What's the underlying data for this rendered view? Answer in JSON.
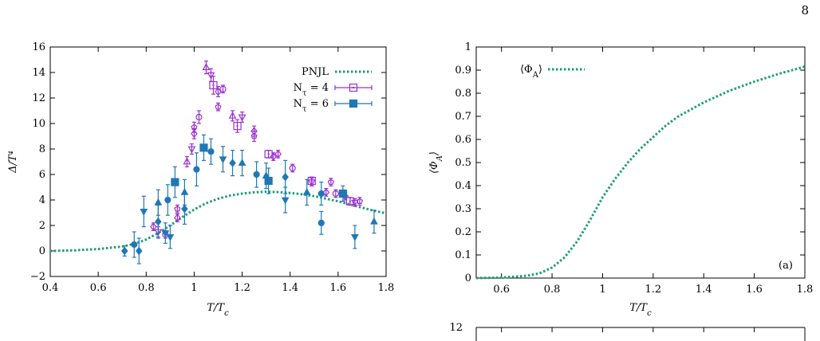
{
  "page_number": "8",
  "colors": {
    "pnjl": "#1a9e77",
    "nt4": "#9b30d0",
    "nt6": "#1f78b4",
    "frame": "#000000"
  },
  "chart_data": [
    {
      "type": "scatter",
      "xlabel": "T/T_c",
      "ylabel": "Δ/T⁴",
      "xlim": [
        0.4,
        1.8
      ],
      "ylim": [
        -2,
        16
      ],
      "xticks": [
        0.4,
        0.6,
        0.8,
        1,
        1.2,
        1.4,
        1.6,
        1.8
      ],
      "yticks": [
        -2,
        0,
        2,
        4,
        6,
        8,
        10,
        12,
        14,
        16
      ],
      "xtick_labels": [
        "0.4",
        "0.6",
        "0.8",
        "1",
        "1.2",
        "1.4",
        "1.6",
        "1.8"
      ],
      "ytick_labels": [
        "−2",
        "0",
        "2",
        "4",
        "6",
        "8",
        "10",
        "12",
        "14",
        "16"
      ],
      "legend_position": "top-right",
      "legend": [
        "PNJL",
        "N_τ = 4",
        "N_τ = 6"
      ],
      "series": [
        {
          "name": "PNJL",
          "style": "dotted-line",
          "x": [
            0.4,
            0.5,
            0.6,
            0.7,
            0.75,
            0.8,
            0.85,
            0.9,
            0.95,
            1.0,
            1.05,
            1.1,
            1.15,
            1.2,
            1.25,
            1.3,
            1.35,
            1.4,
            1.45,
            1.5,
            1.55,
            1.6,
            1.65,
            1.7,
            1.75,
            1.8
          ],
          "y": [
            0.0,
            0.05,
            0.15,
            0.35,
            0.55,
            0.9,
            1.4,
            2.0,
            2.65,
            3.25,
            3.75,
            4.1,
            4.35,
            4.5,
            4.6,
            4.65,
            4.62,
            4.55,
            4.45,
            4.3,
            4.1,
            3.9,
            3.65,
            3.4,
            3.15,
            2.95
          ]
        },
        {
          "name": "N_τ = 4",
          "style": "open-symbols",
          "points": [
            {
              "x": 0.83,
              "y": 1.9,
              "err": 0.3,
              "sym": "diamond"
            },
            {
              "x": 0.85,
              "y": 1.5,
              "err": 0.4,
              "sym": "triangle-down"
            },
            {
              "x": 0.88,
              "y": 1.3,
              "err": 0.3,
              "sym": "circle"
            },
            {
              "x": 0.93,
              "y": 3.3,
              "err": 0.3,
              "sym": "pentagon"
            },
            {
              "x": 0.93,
              "y": 2.6,
              "err": 0.3,
              "sym": "diamond"
            },
            {
              "x": 0.97,
              "y": 7.0,
              "err": 0.4,
              "sym": "triangle-up"
            },
            {
              "x": 0.99,
              "y": 8.0,
              "err": 0.4,
              "sym": "triangle-down"
            },
            {
              "x": 1.0,
              "y": 9.7,
              "err": 0.4,
              "sym": "pentagon"
            },
            {
              "x": 1.0,
              "y": 9.2,
              "err": 0.4,
              "sym": "diamond"
            },
            {
              "x": 1.02,
              "y": 10.5,
              "err": 0.5,
              "sym": "circle"
            },
            {
              "x": 1.05,
              "y": 14.4,
              "err": 0.5,
              "sym": "triangle-up"
            },
            {
              "x": 1.07,
              "y": 13.8,
              "err": 0.5,
              "sym": "triangle-down"
            },
            {
              "x": 1.08,
              "y": 13.0,
              "err": 0.7,
              "sym": "square"
            },
            {
              "x": 1.1,
              "y": 12.5,
              "err": 0.4,
              "sym": "diamond"
            },
            {
              "x": 1.1,
              "y": 11.3,
              "err": 0.3,
              "sym": "pentagon"
            },
            {
              "x": 1.12,
              "y": 12.7,
              "err": 0.3,
              "sym": "circle"
            },
            {
              "x": 1.16,
              "y": 10.6,
              "err": 0.4,
              "sym": "triangle-up"
            },
            {
              "x": 1.18,
              "y": 9.8,
              "err": 0.5,
              "sym": "square"
            },
            {
              "x": 1.2,
              "y": 10.5,
              "err": 0.4,
              "sym": "triangle-down"
            },
            {
              "x": 1.25,
              "y": 9.4,
              "err": 0.4,
              "sym": "diamond"
            },
            {
              "x": 1.25,
              "y": 9.0,
              "err": 0.4,
              "sym": "pentagon"
            },
            {
              "x": 1.31,
              "y": 7.6,
              "err": 0.3,
              "sym": "square"
            },
            {
              "x": 1.33,
              "y": 7.4,
              "err": 0.3,
              "sym": "diamond"
            },
            {
              "x": 1.35,
              "y": 7.6,
              "err": 0.3,
              "sym": "diamond"
            },
            {
              "x": 1.41,
              "y": 6.5,
              "err": 0.3,
              "sym": "circle"
            },
            {
              "x": 1.49,
              "y": 5.5,
              "err": 0.3,
              "sym": "square"
            },
            {
              "x": 1.49,
              "y": 5.4,
              "err": 0.3,
              "sym": "triangle-down"
            },
            {
              "x": 1.55,
              "y": 4.6,
              "err": 0.3,
              "sym": "diamond"
            },
            {
              "x": 1.57,
              "y": 5.4,
              "err": 0.3,
              "sym": "pentagon"
            },
            {
              "x": 1.59,
              "y": 4.5,
              "err": 0.3,
              "sym": "circle"
            },
            {
              "x": 1.63,
              "y": 4.3,
              "err": 0.3,
              "sym": "diamond"
            },
            {
              "x": 1.65,
              "y": 3.9,
              "err": 0.3,
              "sym": "square"
            },
            {
              "x": 1.67,
              "y": 3.8,
              "err": 0.3,
              "sym": "triangle-down"
            },
            {
              "x": 1.69,
              "y": 3.9,
              "err": 0.3,
              "sym": "pentagon"
            }
          ]
        },
        {
          "name": "N_τ = 6",
          "style": "filled-symbols",
          "points": [
            {
              "x": 0.71,
              "y": 0.0,
              "err": 0.4,
              "sym": "diamond"
            },
            {
              "x": 0.75,
              "y": 0.5,
              "err": 1.0,
              "sym": "circle"
            },
            {
              "x": 0.77,
              "y": 0.0,
              "err": 1.0,
              "sym": "diamond"
            },
            {
              "x": 0.79,
              "y": 3.1,
              "err": 1.2,
              "sym": "triangle-down"
            },
            {
              "x": 0.85,
              "y": 2.3,
              "err": 1.3,
              "sym": "diamond"
            },
            {
              "x": 0.85,
              "y": 3.8,
              "err": 1.0,
              "sym": "triangle-up"
            },
            {
              "x": 0.88,
              "y": 1.4,
              "err": 0.8,
              "sym": "triangle-down"
            },
            {
              "x": 0.89,
              "y": 4.0,
              "err": 1.2,
              "sym": "circle"
            },
            {
              "x": 0.9,
              "y": 1.1,
              "err": 0.9,
              "sym": "triangle-down"
            },
            {
              "x": 0.92,
              "y": 5.4,
              "err": 1.2,
              "sym": "square"
            },
            {
              "x": 0.96,
              "y": 3.3,
              "err": 1.2,
              "sym": "diamond"
            },
            {
              "x": 0.96,
              "y": 4.6,
              "err": 1.0,
              "sym": "triangle-up"
            },
            {
              "x": 1.01,
              "y": 6.4,
              "err": 1.3,
              "sym": "circle"
            },
            {
              "x": 1.04,
              "y": 8.1,
              "err": 1.0,
              "sym": "square"
            },
            {
              "x": 1.07,
              "y": 7.8,
              "err": 1.0,
              "sym": "circle"
            },
            {
              "x": 1.12,
              "y": 7.2,
              "err": 1.0,
              "sym": "triangle-down"
            },
            {
              "x": 1.16,
              "y": 6.9,
              "err": 1.0,
              "sym": "diamond"
            },
            {
              "x": 1.2,
              "y": 6.9,
              "err": 1.0,
              "sym": "triangle-up"
            },
            {
              "x": 1.26,
              "y": 6.0,
              "err": 1.0,
              "sym": "circle"
            },
            {
              "x": 1.3,
              "y": 5.9,
              "err": 1.0,
              "sym": "triangle-up"
            },
            {
              "x": 1.31,
              "y": 5.5,
              "err": 1.0,
              "sym": "square"
            },
            {
              "x": 1.38,
              "y": 5.8,
              "err": 1.3,
              "sym": "diamond"
            },
            {
              "x": 1.38,
              "y": 4.0,
              "err": 1.0,
              "sym": "triangle-down"
            },
            {
              "x": 1.47,
              "y": 4.6,
              "err": 1.0,
              "sym": "triangle-up"
            },
            {
              "x": 1.53,
              "y": 4.5,
              "err": 0.9,
              "sym": "circle"
            },
            {
              "x": 1.53,
              "y": 2.2,
              "err": 0.9,
              "sym": "circle"
            },
            {
              "x": 1.62,
              "y": 4.5,
              "err": 0.6,
              "sym": "square"
            },
            {
              "x": 1.67,
              "y": 1.1,
              "err": 0.9,
              "sym": "triangle-down"
            },
            {
              "x": 1.75,
              "y": 2.3,
              "err": 0.9,
              "sym": "triangle-up"
            }
          ]
        }
      ]
    },
    {
      "type": "line",
      "xlabel": "T/T_c",
      "ylabel": "⟨Φ_A⟩",
      "xlim": [
        0.5,
        1.8
      ],
      "ylim": [
        0,
        1
      ],
      "xticks": [
        0.6,
        0.8,
        1,
        1.2,
        1.4,
        1.6,
        1.8
      ],
      "yticks": [
        0,
        0.1,
        0.2,
        0.3,
        0.4,
        0.5,
        0.6,
        0.7,
        0.8,
        0.9,
        1
      ],
      "xtick_labels": [
        "0.6",
        "0.8",
        "1",
        "1.2",
        "1.4",
        "1.6",
        "1.8"
      ],
      "ytick_labels": [
        "0",
        "0.1",
        "0.2",
        "0.3",
        "0.4",
        "0.5",
        "0.6",
        "0.7",
        "0.8",
        "0.9",
        "1"
      ],
      "legend_position": "top-left",
      "legend": [
        "⟨Φ_A⟩"
      ],
      "panel_label": "(a)",
      "series": [
        {
          "name": "⟨Φ_A⟩",
          "style": "dotted-line",
          "x": [
            0.5,
            0.6,
            0.7,
            0.75,
            0.8,
            0.85,
            0.9,
            0.95,
            1.0,
            1.05,
            1.1,
            1.15,
            1.2,
            1.25,
            1.3,
            1.4,
            1.5,
            1.6,
            1.7,
            1.8
          ],
          "y": [
            0.0,
            0.002,
            0.01,
            0.02,
            0.045,
            0.09,
            0.16,
            0.25,
            0.35,
            0.43,
            0.5,
            0.56,
            0.61,
            0.66,
            0.7,
            0.76,
            0.81,
            0.85,
            0.885,
            0.915
          ]
        }
      ]
    },
    {
      "type": "line",
      "ytick_labels": [
        "12"
      ],
      "note_visible": "partially visible panel, only top axis tick label shown"
    }
  ]
}
